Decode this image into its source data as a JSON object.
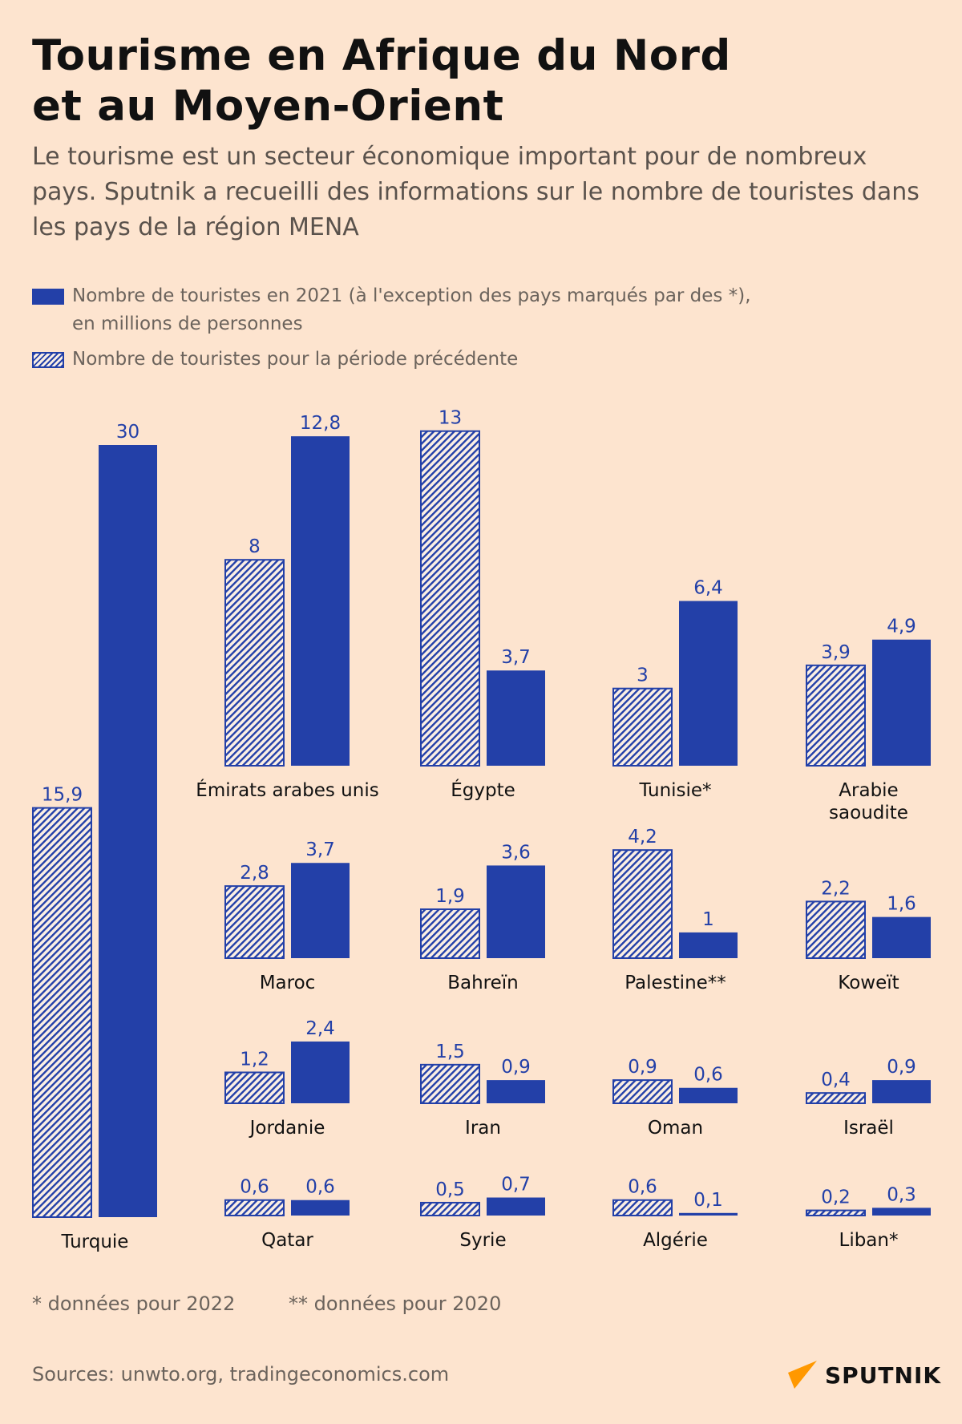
{
  "title_lines": [
    "Tourisme en Afrique du Nord",
    "et au Moyen-Orient"
  ],
  "subtitle": "Le tourisme est un secteur économique important pour de nombreux pays. Sputnik a recueilli des informations sur le nombre de touristes dans les pays de la région MENA",
  "legend": {
    "current_line1": "Nombre de touristes en 2021 (à l'exception des pays marqués par des *),",
    "current_line2": "en millions de personnes",
    "previous": "Nombre de touristes pour la période précédente"
  },
  "colors": {
    "background": "#fde4cf",
    "bar": "#2340a8",
    "hatch_light": "#fbefe4"
  },
  "chart_data": {
    "type": "bar",
    "units": "millions de personnes",
    "series": [
      {
        "name": "Nombre de touristes pour la période précédente",
        "style": "hatched",
        "key": "previous"
      },
      {
        "name": "Nombre de touristes en 2021 (à l'exception des pays marqués par des *)",
        "style": "solid",
        "key": "current"
      }
    ],
    "countries": [
      {
        "name_lines": [
          "Turquie"
        ],
        "previous": 15.9,
        "current": 30,
        "previous_label": "15,9",
        "current_label": "30"
      },
      {
        "name_lines": [
          "Émirats arabes unis"
        ],
        "previous": 8,
        "current": 12.8,
        "previous_label": "8",
        "current_label": "12,8"
      },
      {
        "name_lines": [
          "Égypte"
        ],
        "previous": 13,
        "current": 3.7,
        "previous_label": "13",
        "current_label": "3,7"
      },
      {
        "name_lines": [
          "Tunisie*"
        ],
        "previous": 3,
        "current": 6.4,
        "previous_label": "3",
        "current_label": "6,4"
      },
      {
        "name_lines": [
          "Arabie",
          "saoudite"
        ],
        "previous": 3.9,
        "current": 4.9,
        "previous_label": "3,9",
        "current_label": "4,9"
      },
      {
        "name_lines": [
          "Maroc"
        ],
        "previous": 2.8,
        "current": 3.7,
        "previous_label": "2,8",
        "current_label": "3,7"
      },
      {
        "name_lines": [
          "Bahreïn"
        ],
        "previous": 1.9,
        "current": 3.6,
        "previous_label": "1,9",
        "current_label": "3,6"
      },
      {
        "name_lines": [
          "Palestine**"
        ],
        "previous": 4.2,
        "current": 1,
        "previous_label": "4,2",
        "current_label": "1"
      },
      {
        "name_lines": [
          "Koweït"
        ],
        "previous": 2.2,
        "current": 1.6,
        "previous_label": "2,2",
        "current_label": "1,6"
      },
      {
        "name_lines": [
          "Jordanie"
        ],
        "previous": 1.2,
        "current": 2.4,
        "previous_label": "1,2",
        "current_label": "2,4"
      },
      {
        "name_lines": [
          "Iran"
        ],
        "previous": 1.5,
        "current": 0.9,
        "previous_label": "1,5",
        "current_label": "0,9"
      },
      {
        "name_lines": [
          "Oman"
        ],
        "previous": 0.9,
        "current": 0.6,
        "previous_label": "0,9",
        "current_label": "0,6"
      },
      {
        "name_lines": [
          "Israël"
        ],
        "previous": 0.4,
        "current": 0.9,
        "previous_label": "0,4",
        "current_label": "0,9"
      },
      {
        "name_lines": [
          "Qatar"
        ],
        "previous": 0.6,
        "current": 0.6,
        "previous_label": "0,6",
        "current_label": "0,6"
      },
      {
        "name_lines": [
          "Syrie"
        ],
        "previous": 0.5,
        "current": 0.7,
        "previous_label": "0,5",
        "current_label": "0,7"
      },
      {
        "name_lines": [
          "Algérie"
        ],
        "previous": 0.6,
        "current": 0.1,
        "previous_label": "0,6",
        "current_label": "0,1"
      },
      {
        "name_lines": [
          "Liban*"
        ],
        "previous": 0.2,
        "current": 0.3,
        "previous_label": "0,2",
        "current_label": "0,3"
      }
    ]
  },
  "footnotes": {
    "one_star": "* données pour 2022",
    "two_stars": "** données pour 2020"
  },
  "sources": "Sources: unwto.org, tradingeconomics.com",
  "logo": {
    "text": "SPUTNIK"
  }
}
